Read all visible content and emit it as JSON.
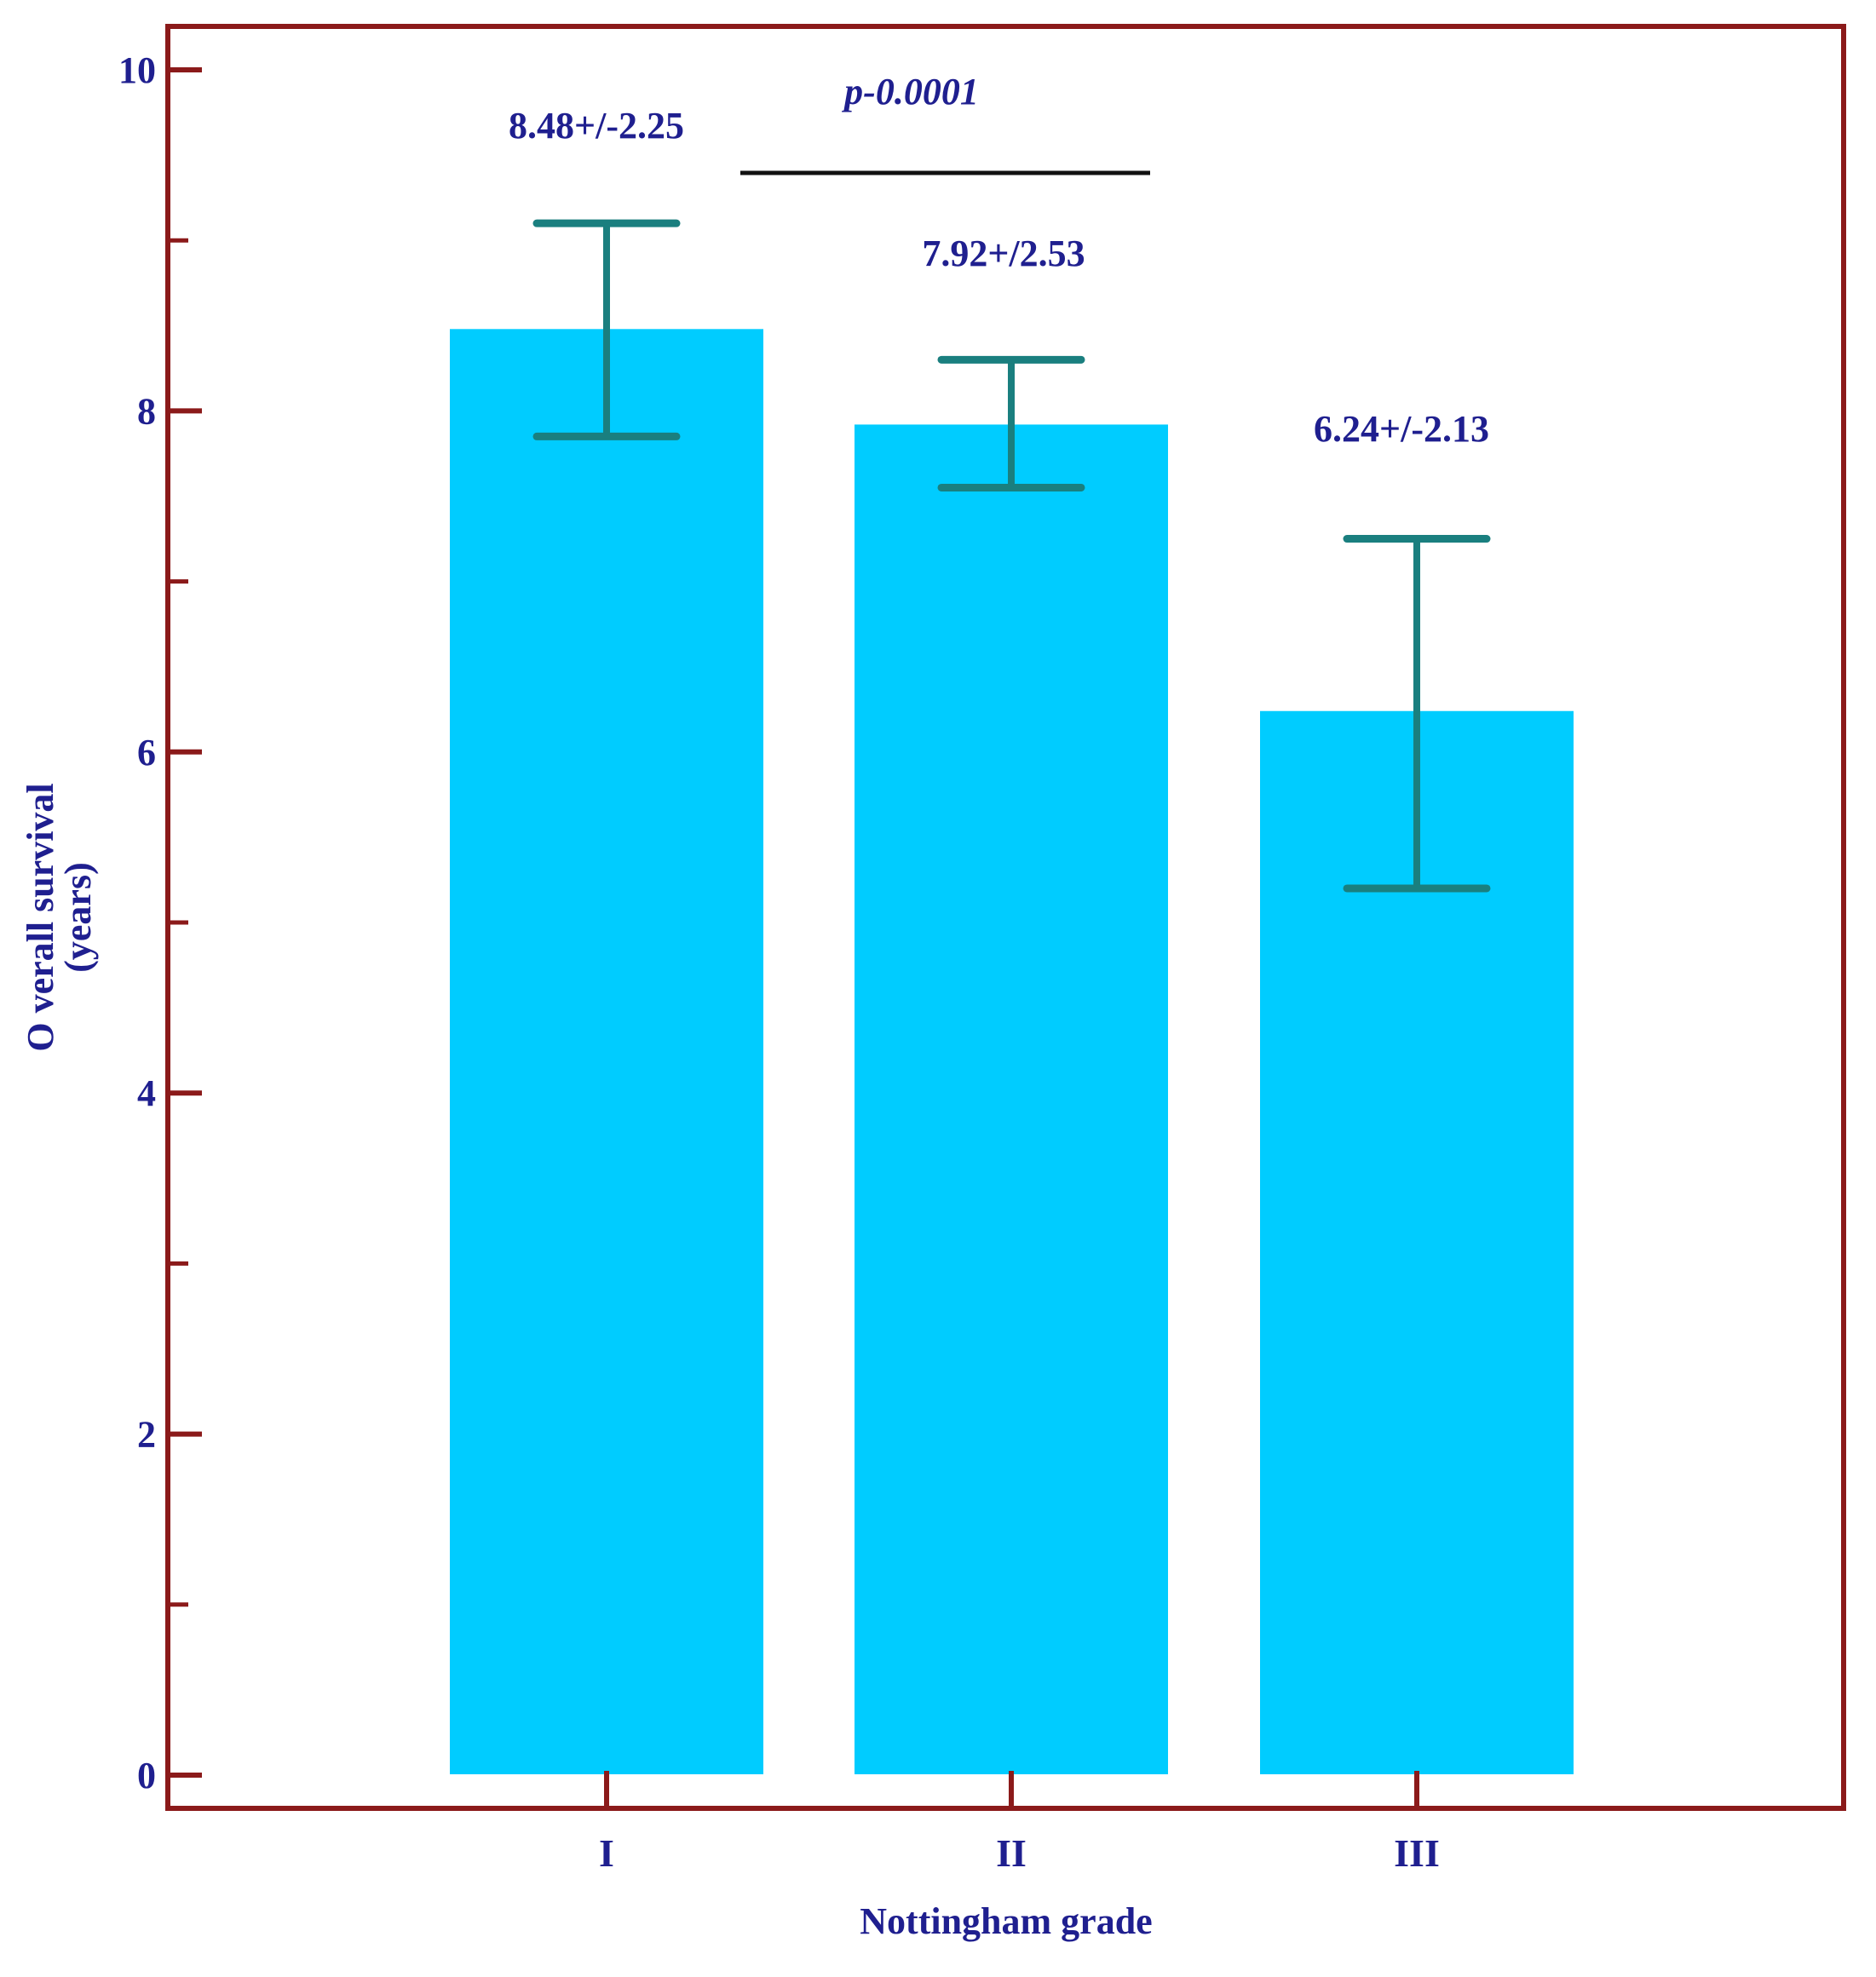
{
  "chart_data": {
    "type": "bar",
    "categories": [
      "I",
      "II",
      "III"
    ],
    "values": [
      8.48,
      7.92,
      6.24
    ],
    "error_upper": [
      9.1,
      8.3,
      7.25
    ],
    "error_lower": [
      7.85,
      7.55,
      5.2
    ],
    "bar_labels": [
      "8.48+/-2.25",
      "7.92+/2.53",
      "6.24+/-2.13"
    ],
    "xlabel": "Nottingham grade",
    "ylabel_line1": "O verall survival",
    "ylabel_line2": "(years)",
    "ylim": [
      0,
      10
    ],
    "y_major_ticks": [
      0,
      2,
      4,
      6,
      8,
      10
    ],
    "y_minor_ticks": [
      1,
      3,
      5,
      7,
      9
    ],
    "y_tick_labels": [
      "0",
      "2",
      "4",
      "6",
      "8",
      "10"
    ],
    "significance": {
      "label": "p-0.0001",
      "between": [
        "I",
        "II"
      ]
    },
    "colors": {
      "bar": "#00ccff",
      "error_bar": "#1a7f7f",
      "frame": "#8b1a1a",
      "text": "#1f1f8f",
      "significance_line": "#111111"
    }
  }
}
